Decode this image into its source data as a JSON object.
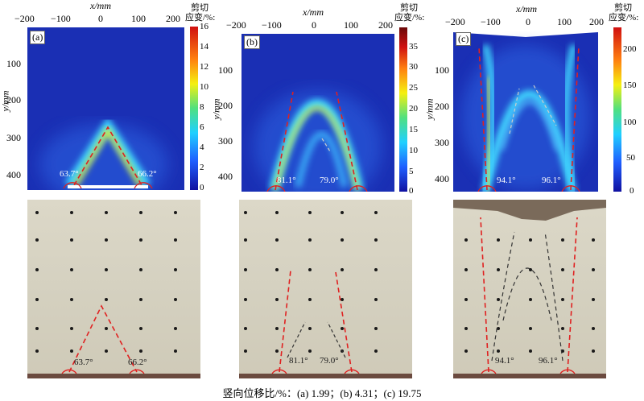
{
  "axis": {
    "x_label": "x/mm",
    "y_label": "y/mm",
    "x_ticks": [
      "−200",
      "−100",
      "0",
      "100",
      "200"
    ],
    "y_ticks": [
      "100",
      "200",
      "300",
      "400"
    ]
  },
  "colorbar_title": "剪切\n应变/%:",
  "panels": [
    {
      "label": "(a)",
      "cbar_ticks": [
        "16",
        "14",
        "12",
        "10",
        "8",
        "6",
        "4",
        "2",
        "0"
      ],
      "angle_left": "63.7°",
      "angle_right": "66.2°"
    },
    {
      "label": "(b)",
      "cbar_ticks": [
        "35",
        "30",
        "25",
        "20",
        "15",
        "10",
        "5",
        "0"
      ],
      "angle_left": "81.1°",
      "angle_right": "79.0°"
    },
    {
      "label": "(c)",
      "cbar_ticks": [
        "200",
        "150",
        "100",
        "50",
        "0"
      ],
      "angle_left": "94.1°",
      "angle_right": "96.1°"
    }
  ],
  "caption": "竖向位移比/%：(a) 1.99；(b) 4.31；(c) 19.75",
  "colors": {
    "field_bg": "#1a2fb4",
    "band": "#44d0ff",
    "red_dash": "#e02020",
    "gray_dash": "#555555"
  }
}
